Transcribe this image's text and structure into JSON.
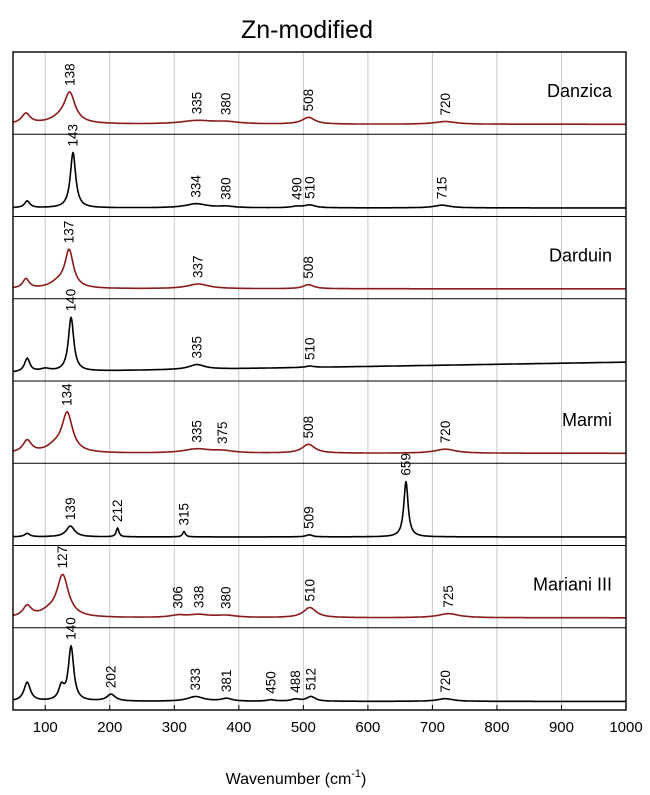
{
  "chart_data": {
    "type": "line",
    "title": "Zn-modified",
    "xlabel": "Wavenumber (cm",
    "xlabel_sup": "-1",
    "xlabel_close": ")",
    "xlim": [
      50,
      1000
    ],
    "xticks": [
      "100",
      "200",
      "300",
      "400",
      "500",
      "600",
      "700",
      "800",
      "900",
      "1000"
    ],
    "grid": true,
    "colors": {
      "treated": "#8b1a1a",
      "reference": "#000000"
    },
    "series": [
      {
        "name": "Danzica",
        "color": "#8b1a1a",
        "baseline": 0.05,
        "peaks": [
          {
            "x": 70,
            "h": 0.15,
            "w": 8
          },
          {
            "x": 138,
            "h": 0.42,
            "w": 10
          },
          {
            "x": 125,
            "h": 0.08,
            "w": 20
          },
          {
            "x": 335,
            "h": 0.05,
            "w": 30
          },
          {
            "x": 380,
            "h": 0.03,
            "w": 25
          },
          {
            "x": 508,
            "h": 0.1,
            "w": 12
          },
          {
            "x": 720,
            "h": 0.04,
            "w": 20
          }
        ],
        "labels": [
          "138",
          "335",
          "380",
          "508",
          "720"
        ]
      },
      {
        "name": "",
        "color": "#000000",
        "baseline": 0.03,
        "peaks": [
          {
            "x": 72,
            "h": 0.1,
            "w": 5
          },
          {
            "x": 143,
            "h": 0.82,
            "w": 5
          },
          {
            "x": 334,
            "h": 0.06,
            "w": 20
          },
          {
            "x": 380,
            "h": 0.02,
            "w": 15
          },
          {
            "x": 490,
            "h": 0.02,
            "w": 10
          },
          {
            "x": 510,
            "h": 0.04,
            "w": 10
          },
          {
            "x": 715,
            "h": 0.04,
            "w": 15
          }
        ],
        "labels": [
          "143",
          "334",
          "380",
          "490",
          "510",
          "715"
        ]
      },
      {
        "name": "Darduin",
        "color": "#8b1a1a",
        "baseline": 0.05,
        "peaks": [
          {
            "x": 70,
            "h": 0.14,
            "w": 6
          },
          {
            "x": 137,
            "h": 0.55,
            "w": 8
          },
          {
            "x": 120,
            "h": 0.08,
            "w": 15
          },
          {
            "x": 337,
            "h": 0.07,
            "w": 20
          },
          {
            "x": 508,
            "h": 0.06,
            "w": 10
          }
        ],
        "labels": [
          "137",
          "337",
          "508"
        ]
      },
      {
        "name": "",
        "color": "#000000",
        "baseline": 0.03,
        "slope_end": 0.38,
        "peaks": [
          {
            "x": 72,
            "h": 0.2,
            "w": 5
          },
          {
            "x": 140,
            "h": 0.8,
            "w": 5
          },
          {
            "x": 100,
            "h": 0.04,
            "w": 10
          },
          {
            "x": 335,
            "h": 0.07,
            "w": 15
          },
          {
            "x": 510,
            "h": 0.02,
            "w": 8
          }
        ],
        "labels": [
          "140",
          "335",
          "510"
        ]
      },
      {
        "name": "Marmi",
        "color": "#8b1a1a",
        "baseline": 0.05,
        "peaks": [
          {
            "x": 72,
            "h": 0.18,
            "w": 8
          },
          {
            "x": 134,
            "h": 0.58,
            "w": 10
          },
          {
            "x": 115,
            "h": 0.08,
            "w": 15
          },
          {
            "x": 335,
            "h": 0.06,
            "w": 25
          },
          {
            "x": 375,
            "h": 0.03,
            "w": 20
          },
          {
            "x": 508,
            "h": 0.13,
            "w": 12
          },
          {
            "x": 720,
            "h": 0.06,
            "w": 20
          }
        ],
        "labels": [
          "134",
          "335",
          "375",
          "508",
          "720"
        ]
      },
      {
        "name": "",
        "color": "#000000",
        "baseline": 0.03,
        "peaks": [
          {
            "x": 72,
            "h": 0.05,
            "w": 5
          },
          {
            "x": 139,
            "h": 0.16,
            "w": 8
          },
          {
            "x": 212,
            "h": 0.13,
            "w": 2.5
          },
          {
            "x": 315,
            "h": 0.08,
            "w": 2.5
          },
          {
            "x": 509,
            "h": 0.03,
            "w": 6
          },
          {
            "x": 659,
            "h": 0.82,
            "w": 4
          }
        ],
        "labels": [
          "139",
          "212",
          "315",
          "509",
          "659"
        ]
      },
      {
        "name": "Mariani III",
        "color": "#8b1a1a",
        "baseline": 0.05,
        "peaks": [
          {
            "x": 72,
            "h": 0.16,
            "w": 8
          },
          {
            "x": 127,
            "h": 0.62,
            "w": 11
          },
          {
            "x": 105,
            "h": 0.06,
            "w": 15
          },
          {
            "x": 306,
            "h": 0.03,
            "w": 15
          },
          {
            "x": 338,
            "h": 0.04,
            "w": 20
          },
          {
            "x": 380,
            "h": 0.03,
            "w": 20
          },
          {
            "x": 510,
            "h": 0.15,
            "w": 12
          },
          {
            "x": 725,
            "h": 0.06,
            "w": 20
          }
        ],
        "labels": [
          "127",
          "306",
          "338",
          "380",
          "510",
          "725"
        ]
      },
      {
        "name": "",
        "color": "#000000",
        "baseline": 0.03,
        "peaks": [
          {
            "x": 72,
            "h": 0.28,
            "w": 6
          },
          {
            "x": 140,
            "h": 0.8,
            "w": 5
          },
          {
            "x": 125,
            "h": 0.2,
            "w": 5
          },
          {
            "x": 202,
            "h": 0.1,
            "w": 8
          },
          {
            "x": 333,
            "h": 0.07,
            "w": 15
          },
          {
            "x": 381,
            "h": 0.04,
            "w": 10
          },
          {
            "x": 450,
            "h": 0.02,
            "w": 8
          },
          {
            "x": 488,
            "h": 0.03,
            "w": 8
          },
          {
            "x": 512,
            "h": 0.07,
            "w": 8
          },
          {
            "x": 720,
            "h": 0.04,
            "w": 15
          }
        ],
        "labels": [
          "140",
          "202",
          "333",
          "381",
          "450",
          "488",
          "512",
          "720"
        ]
      }
    ]
  }
}
